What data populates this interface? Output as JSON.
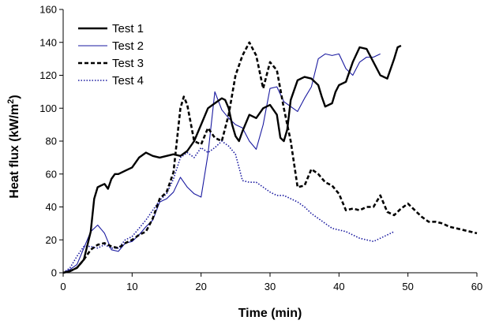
{
  "chart_data": {
    "type": "line",
    "title": "",
    "xlabel": "Time (min)",
    "ylabel_main": "Heat flux (kW/m",
    "ylabel_sup": "2",
    "ylabel_end": ")",
    "xlim": [
      0,
      60
    ],
    "ylim": [
      0,
      160
    ],
    "x_ticks": [
      "0",
      "10",
      "20",
      "30",
      "40",
      "50",
      "60"
    ],
    "y_ticks": [
      "0",
      "20",
      "40",
      "60",
      "80",
      "100",
      "120",
      "140",
      "160"
    ],
    "grid": false,
    "legend_position": "top-left",
    "series": [
      {
        "name": "Test 1",
        "color": "#000000",
        "style": "solid-thick",
        "points": [
          [
            0,
            0
          ],
          [
            1,
            1
          ],
          [
            2,
            3
          ],
          [
            3,
            8
          ],
          [
            4,
            25
          ],
          [
            4.5,
            45
          ],
          [
            5,
            52
          ],
          [
            6,
            54
          ],
          [
            6.5,
            51
          ],
          [
            7,
            57
          ],
          [
            7.5,
            60
          ],
          [
            8,
            60
          ],
          [
            9,
            62
          ],
          [
            10,
            64
          ],
          [
            11,
            70
          ],
          [
            12,
            73
          ],
          [
            13,
            71
          ],
          [
            14,
            70
          ],
          [
            15,
            71
          ],
          [
            16,
            72
          ],
          [
            17,
            71
          ],
          [
            18,
            74
          ],
          [
            19,
            80
          ],
          [
            20,
            90
          ],
          [
            21,
            100
          ],
          [
            22,
            103
          ],
          [
            23,
            106
          ],
          [
            23.5,
            105
          ],
          [
            24,
            100
          ],
          [
            24.5,
            90
          ],
          [
            25,
            83
          ],
          [
            25.5,
            80
          ],
          [
            26,
            86
          ],
          [
            27,
            96
          ],
          [
            28,
            94
          ],
          [
            29,
            100
          ],
          [
            30,
            102
          ],
          [
            31,
            96
          ],
          [
            31.5,
            82
          ],
          [
            32,
            80
          ],
          [
            32.5,
            87
          ],
          [
            33,
            105
          ],
          [
            34,
            117
          ],
          [
            35,
            119
          ],
          [
            36,
            118
          ],
          [
            37,
            114
          ],
          [
            37.5,
            107
          ],
          [
            38,
            101
          ],
          [
            39,
            103
          ],
          [
            39.5,
            110
          ],
          [
            40,
            114
          ],
          [
            41,
            116
          ],
          [
            42,
            128
          ],
          [
            43,
            137
          ],
          [
            44,
            136
          ],
          [
            45,
            128
          ],
          [
            46,
            120
          ],
          [
            47,
            118
          ],
          [
            48,
            130
          ],
          [
            48.5,
            137
          ],
          [
            49,
            138
          ]
        ]
      },
      {
        "name": "Test 2",
        "color": "#1a1aa0",
        "style": "solid-thin",
        "points": [
          [
            0,
            0
          ],
          [
            1,
            2
          ],
          [
            2,
            5
          ],
          [
            3,
            15
          ],
          [
            4,
            25
          ],
          [
            5,
            29
          ],
          [
            6,
            24
          ],
          [
            7,
            14
          ],
          [
            8,
            13
          ],
          [
            9,
            18
          ],
          [
            10,
            19
          ],
          [
            11,
            23
          ],
          [
            12,
            28
          ],
          [
            13,
            32
          ],
          [
            14,
            43
          ],
          [
            15,
            45
          ],
          [
            16,
            49
          ],
          [
            17,
            58
          ],
          [
            18,
            52
          ],
          [
            19,
            48
          ],
          [
            20,
            46
          ],
          [
            21,
            72
          ],
          [
            22,
            110
          ],
          [
            23,
            99
          ],
          [
            24,
            94
          ],
          [
            25,
            90
          ],
          [
            26,
            88
          ],
          [
            27,
            80
          ],
          [
            28,
            75
          ],
          [
            29,
            90
          ],
          [
            30,
            112
          ],
          [
            31,
            113
          ],
          [
            32,
            104
          ],
          [
            33,
            101
          ],
          [
            34,
            98
          ],
          [
            35,
            106
          ],
          [
            36,
            113
          ],
          [
            37,
            130
          ],
          [
            38,
            133
          ],
          [
            39,
            132
          ],
          [
            40,
            133
          ],
          [
            41,
            124
          ],
          [
            42,
            120
          ],
          [
            43,
            128
          ],
          [
            44,
            131
          ],
          [
            45,
            131
          ],
          [
            46,
            133
          ]
        ]
      },
      {
        "name": "Test 3",
        "color": "#000000",
        "style": "dashed",
        "points": [
          [
            0,
            0
          ],
          [
            1,
            1
          ],
          [
            2,
            3
          ],
          [
            3,
            8
          ],
          [
            4,
            14
          ],
          [
            5,
            17
          ],
          [
            6,
            18
          ],
          [
            7,
            16
          ],
          [
            8,
            15
          ],
          [
            9,
            18
          ],
          [
            10,
            20
          ],
          [
            11,
            23
          ],
          [
            12,
            25
          ],
          [
            13,
            33
          ],
          [
            14,
            45
          ],
          [
            15,
            49
          ],
          [
            16,
            61
          ],
          [
            17,
            100
          ],
          [
            17.5,
            107
          ],
          [
            18,
            102
          ],
          [
            19,
            80
          ],
          [
            20,
            78
          ],
          [
            21,
            88
          ],
          [
            22,
            82
          ],
          [
            23,
            80
          ],
          [
            24,
            96
          ],
          [
            25,
            120
          ],
          [
            26,
            132
          ],
          [
            27,
            140
          ],
          [
            28,
            132
          ],
          [
            29,
            112
          ],
          [
            30,
            128
          ],
          [
            31,
            123
          ],
          [
            32,
            100
          ],
          [
            33,
            80
          ],
          [
            34,
            52
          ],
          [
            35,
            53
          ],
          [
            36,
            63
          ],
          [
            37,
            60
          ],
          [
            38,
            55
          ],
          [
            39,
            53
          ],
          [
            40,
            48
          ],
          [
            41,
            38
          ],
          [
            42,
            39
          ],
          [
            43,
            38
          ],
          [
            44,
            40
          ],
          [
            45,
            40
          ],
          [
            46,
            47
          ],
          [
            47,
            37
          ],
          [
            48,
            35
          ],
          [
            49,
            39
          ],
          [
            50,
            42
          ],
          [
            51,
            38
          ],
          [
            52,
            34
          ],
          [
            53,
            31
          ],
          [
            54,
            31
          ],
          [
            55,
            30
          ],
          [
            56,
            28
          ],
          [
            57,
            27
          ],
          [
            58,
            26
          ],
          [
            59,
            25
          ],
          [
            60,
            24
          ]
        ]
      },
      {
        "name": "Test 4",
        "color": "#1a1aa0",
        "style": "dotted",
        "points": [
          [
            0,
            0
          ],
          [
            1,
            3
          ],
          [
            2,
            10
          ],
          [
            3,
            16
          ],
          [
            4,
            16
          ],
          [
            5,
            15
          ],
          [
            6,
            17
          ],
          [
            7,
            15
          ],
          [
            8,
            15
          ],
          [
            9,
            20
          ],
          [
            10,
            22
          ],
          [
            11,
            27
          ],
          [
            12,
            32
          ],
          [
            13,
            38
          ],
          [
            14,
            44
          ],
          [
            15,
            48
          ],
          [
            16,
            57
          ],
          [
            17,
            70
          ],
          [
            18,
            73
          ],
          [
            19,
            70
          ],
          [
            20,
            76
          ],
          [
            21,
            73
          ],
          [
            22,
            76
          ],
          [
            23,
            80
          ],
          [
            24,
            77
          ],
          [
            25,
            72
          ],
          [
            26,
            56
          ],
          [
            27,
            55
          ],
          [
            28,
            55
          ],
          [
            29,
            52
          ],
          [
            30,
            49
          ],
          [
            31,
            47
          ],
          [
            32,
            47
          ],
          [
            33,
            45
          ],
          [
            34,
            43
          ],
          [
            35,
            40
          ],
          [
            36,
            36
          ],
          [
            37,
            33
          ],
          [
            38,
            30
          ],
          [
            39,
            27
          ],
          [
            40,
            26
          ],
          [
            41,
            25
          ],
          [
            42,
            23
          ],
          [
            43,
            21
          ],
          [
            44,
            20
          ],
          [
            45,
            19
          ],
          [
            46,
            21
          ],
          [
            47,
            23
          ],
          [
            48,
            25
          ]
        ]
      }
    ]
  }
}
